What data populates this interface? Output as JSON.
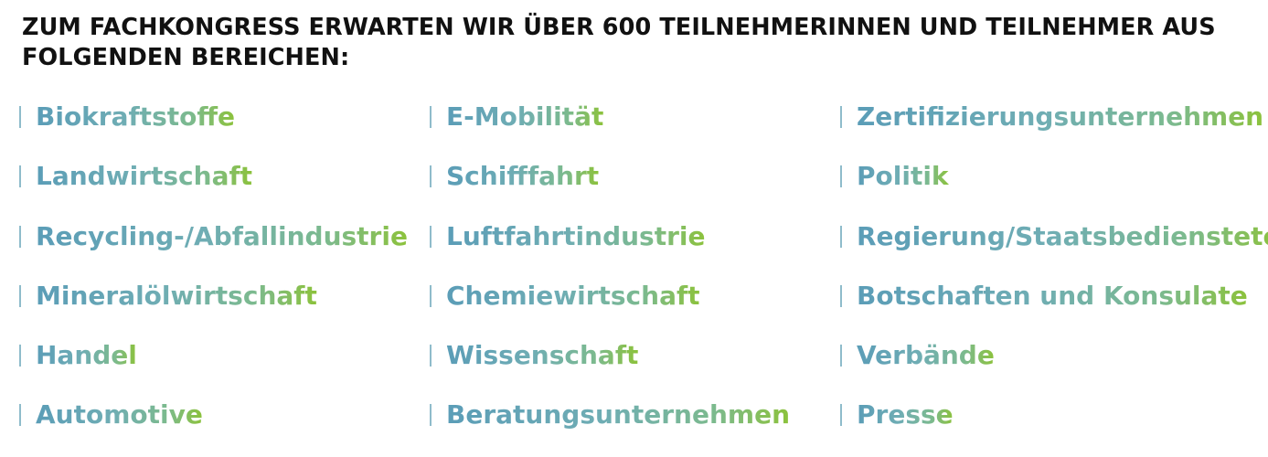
{
  "heading": "ZUM FACHKONGRESS ERWARTEN WIR ÜBER 600 TEILNEHMERINNEN UND TEILNEHMER AUS FOLGENDEN BEREICHEN:",
  "colors": {
    "heading": "#111111",
    "gradient_start": "#5b9db7",
    "gradient_end": "#8cc23b",
    "divider": "#8fbccb"
  },
  "columns": [
    [
      "Biokraftstoffe",
      "Landwirtschaft",
      "Recycling-/Abfallindustrie",
      "Mineralölwirtschaft",
      "Handel",
      "Automotive"
    ],
    [
      "E-Mobilität",
      "Schifffahrt",
      "Luftfahrtindustrie",
      "Chemiewirtschaft",
      "Wissenschaft",
      "Beratungsunternehmen"
    ],
    [
      "Zertifizierungsunternehmen",
      "Politik",
      "Regierung/Staatsbedienstete",
      "Botschaften und Konsulate",
      "Verbände",
      "Presse"
    ]
  ]
}
